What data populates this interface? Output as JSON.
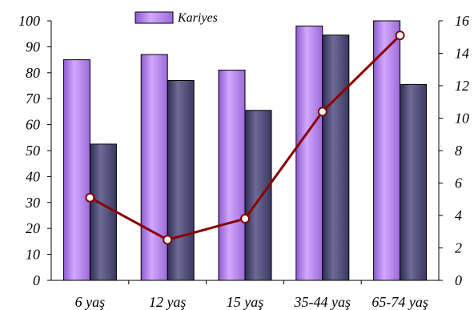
{
  "chart_data": {
    "type": "bar",
    "title": "",
    "xlabel": "",
    "ylabel": "",
    "categories": [
      "6 yaş",
      "12 yaş",
      "15 yaş",
      "35-44 yaş",
      "65-74 yaş"
    ],
    "series": [
      {
        "name": "Kariyes",
        "kind": "bar",
        "axis": "left",
        "values": [
          85,
          87,
          81,
          98,
          100
        ],
        "color": "#b98af0"
      },
      {
        "name": "",
        "kind": "bar",
        "axis": "left",
        "values": [
          52.5,
          77,
          65.5,
          94.5,
          75.5
        ],
        "color": "#5a5880"
      },
      {
        "name": "",
        "kind": "line",
        "axis": "right",
        "values": [
          5.1,
          2.5,
          3.8,
          10.4,
          15.1
        ],
        "color": "#8b0000"
      }
    ],
    "ylim": [
      0,
      100
    ],
    "y_ticks": [
      "0",
      "10",
      "20",
      "30",
      "40",
      "50",
      "60",
      "70",
      "80",
      "90",
      "100"
    ],
    "y2lim": [
      0,
      16
    ],
    "y2_ticks": [
      "0",
      "2",
      "4",
      "6",
      "8",
      "10",
      "12",
      "14",
      "16"
    ],
    "legend": {
      "position": "top-center",
      "entries": [
        "Kariyes"
      ]
    },
    "grid": false
  }
}
